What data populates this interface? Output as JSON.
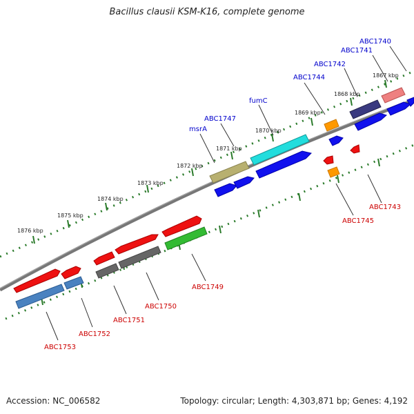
{
  "title": "Bacillus clausii KSM-K16, complete genome",
  "footer": {
    "accession": "Accession: NC_006582",
    "summary": "Topology: circular; Length: 4,303,871 bp; Genes: 4,192"
  },
  "ticks": [
    "1876 kbp",
    "1875 kbp",
    "1874 kbp",
    "1873 kbp",
    "1872 kbp",
    "1871 kbp",
    "1870 kbp",
    "1869 kbp",
    "1868 kbp",
    "1867 kbp"
  ],
  "colors": {
    "backbone": "#808080",
    "tick_marks": "#2a7a2a",
    "forward_label": "#0000cc",
    "reverse_label": "#cc0000",
    "gene_blue": "#1111ee",
    "gene_red": "#ee1111",
    "gene_cyan": "#22dddd",
    "gene_olive": "#b8b070",
    "gene_navy": "#3a3a80",
    "gene_pink": "#ee8080",
    "gene_orange": "#ff9900",
    "gene_gray": "#666666",
    "gene_green": "#33bb33",
    "gene_steel": "#4a82c0"
  },
  "forward_genes": [
    "msrA",
    "ABC1747",
    "fumC",
    "ABC1744",
    "ABC1742",
    "ABC1741",
    "ABC1740"
  ],
  "reverse_genes": [
    "ABC1753",
    "ABC1752",
    "ABC1751",
    "ABC1750",
    "ABC1749",
    "ABC1745",
    "ABC1743"
  ]
}
